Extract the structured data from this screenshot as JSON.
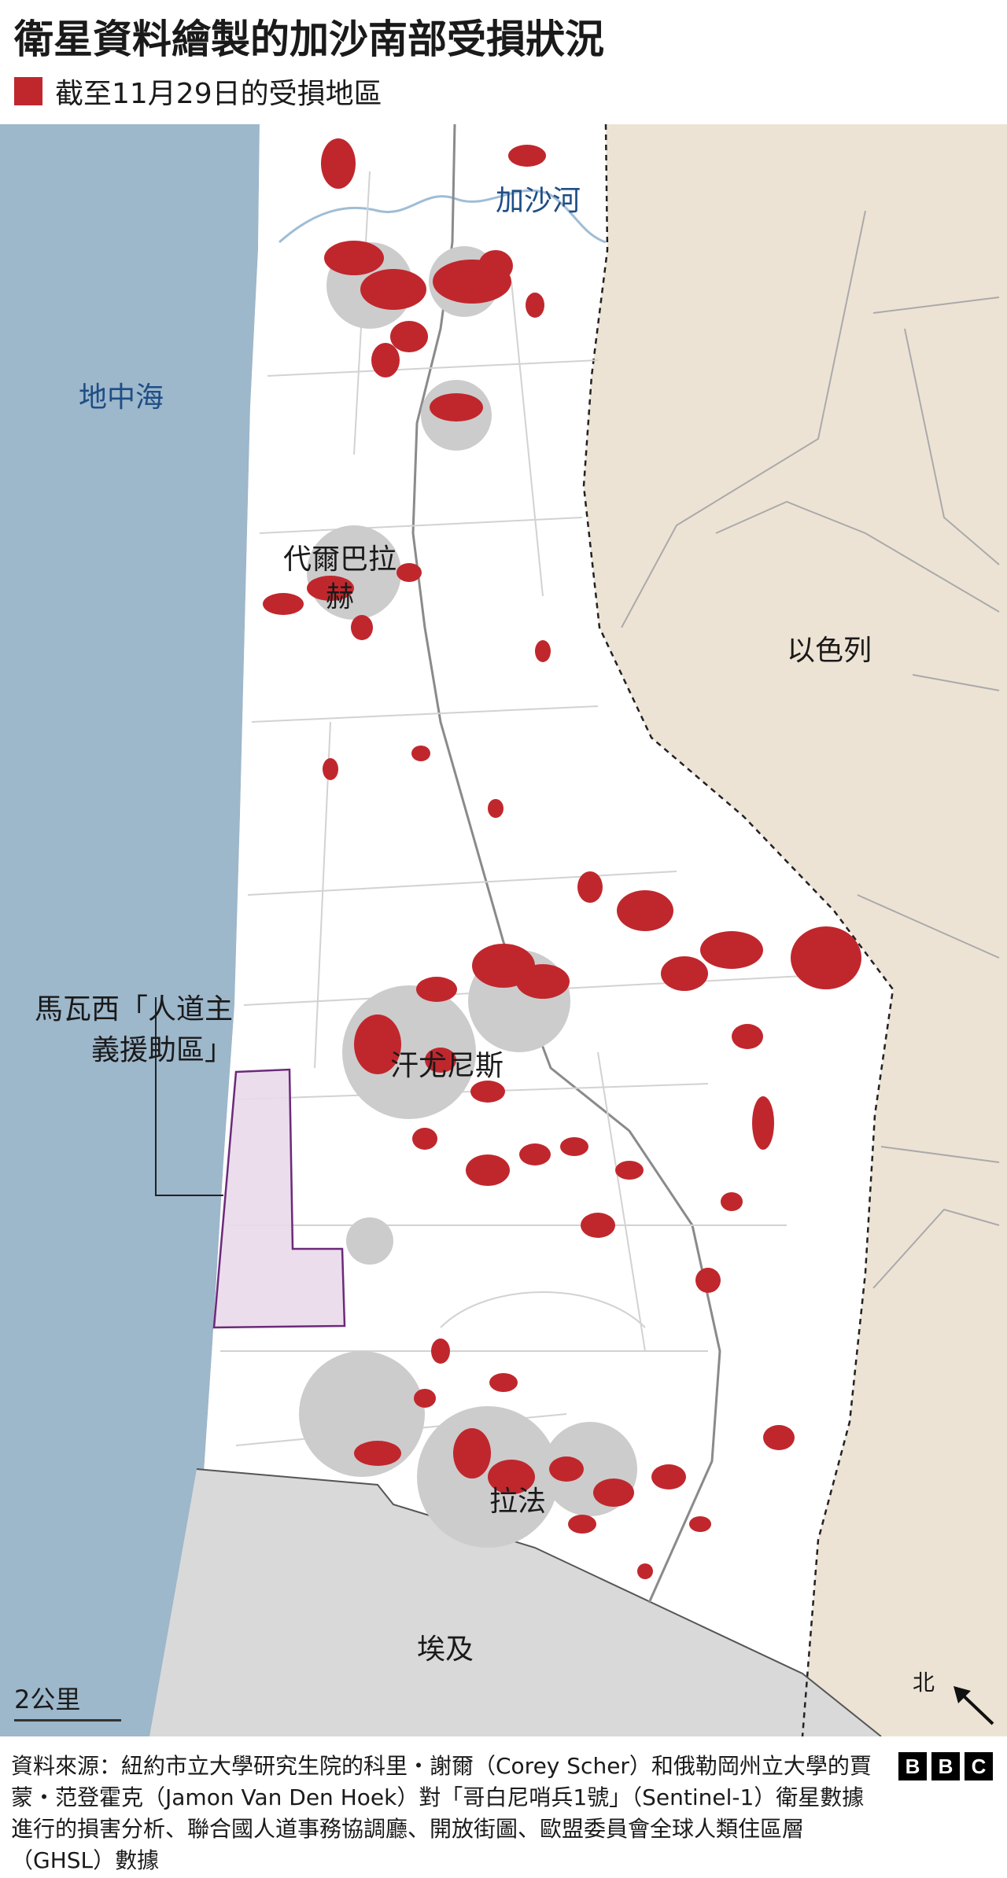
{
  "title": "衛星資料繪製的加沙南部受損狀況",
  "legend": {
    "label": "截至11月29日的受損地區",
    "color": "#c0272d"
  },
  "colors": {
    "sea": "#9db7cb",
    "israel": "#ede3d5",
    "egypt": "#d9d9d9",
    "land": "#ffffff",
    "damage": "#c0272d",
    "humanitarian_zone": "#ead9ea",
    "humanitarian_border": "#6b2a7a",
    "road": "#8a8a8a",
    "river": "#9fbdd6"
  },
  "labels": {
    "sea": "地中海",
    "river": "加沙河",
    "deir": "代爾巴拉\n赫",
    "israel": "以色列",
    "mawasi": "馬瓦西「人道主\n義援助區」",
    "khan": "汗尤尼斯",
    "rafah": "拉法",
    "egypt": "埃及"
  },
  "scale": {
    "label": "2公里"
  },
  "north": {
    "label": "北",
    "icon": "north-arrow-icon"
  },
  "source": "資料來源：紐約市立大學研究生院的科里・謝爾（Corey Scher）和俄勒岡州立大學的賈蒙・范登霍克（Jamon Van Den Hoek）對「哥白尼哨兵1號」（Sentinel-1）衛星數據進行的損害分析、聯合國人道事務協調廳、開放街圖、歐盟委員會全球人類住區層（GHSL）數據",
  "logo": {
    "letters": [
      "B",
      "B",
      "C"
    ]
  }
}
